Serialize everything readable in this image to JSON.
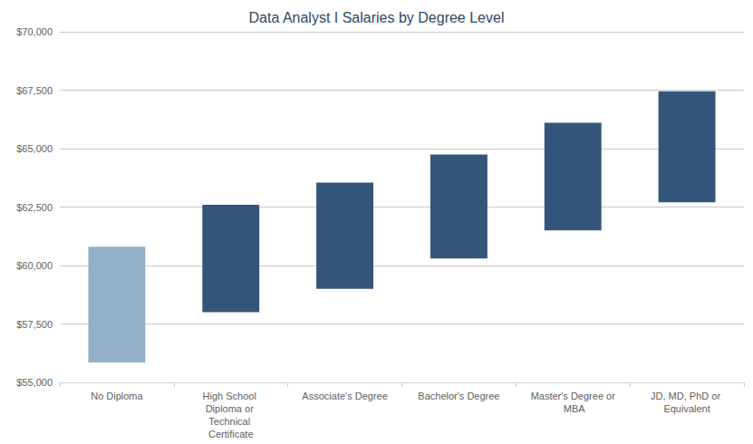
{
  "chart_data": {
    "type": "bar",
    "title": "Data Analyst I Salaries by Degree Level",
    "categories": [
      "No Diploma",
      "High School Diploma or Technical Certificate",
      "Associate's Degree",
      "Bachelor's Degree",
      "Master's Degree or MBA",
      "JD, MD, PhD or Equivalent"
    ],
    "low": [
      55850,
      58000,
      59000,
      60300,
      61500,
      62700
    ],
    "high": [
      60800,
      62600,
      63550,
      64750,
      66100,
      67450
    ],
    "colors": [
      "#94b0c8",
      "#34557a",
      "#34557a",
      "#34557a",
      "#34557a",
      "#34557a"
    ],
    "ylim": [
      55000,
      70000
    ],
    "yticks": [
      {
        "value": 55000,
        "label": "$55,000"
      },
      {
        "value": 57500,
        "label": "$57,500"
      },
      {
        "value": 60000,
        "label": "$60,000"
      },
      {
        "value": 62500,
        "label": "$62,500"
      },
      {
        "value": 65000,
        "label": "$65,000"
      },
      {
        "value": 67500,
        "label": "$67,500"
      },
      {
        "value": 70000,
        "label": "$70,000"
      }
    ],
    "grid": true
  }
}
